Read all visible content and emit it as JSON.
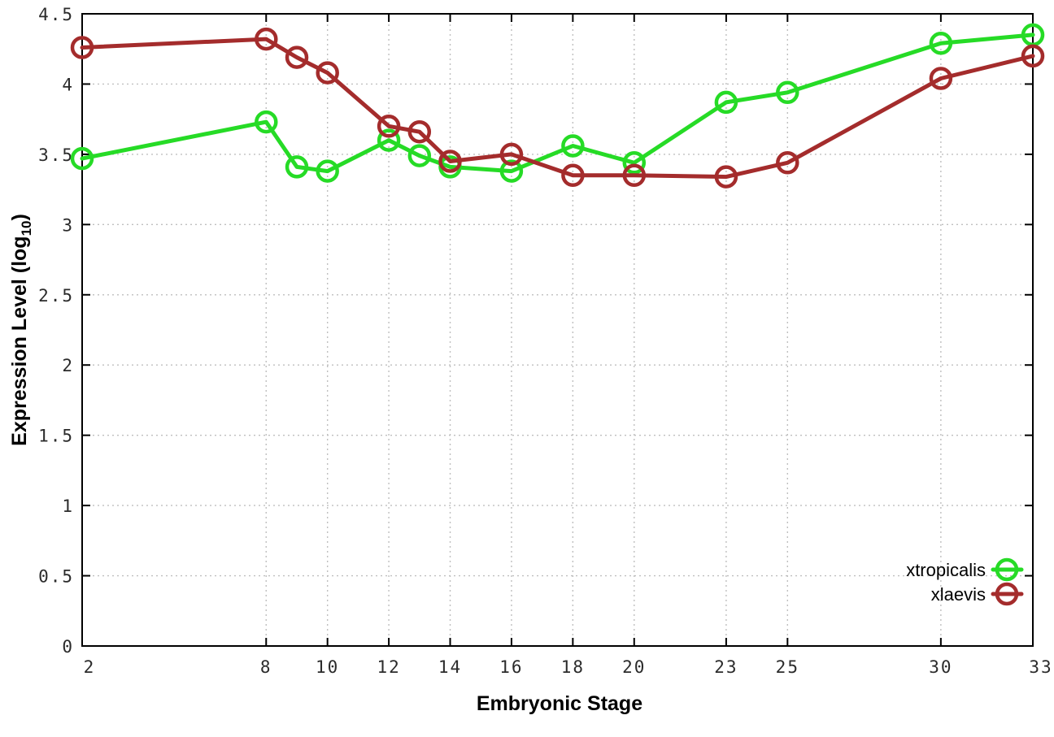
{
  "page": {
    "background": "#ffffff"
  },
  "chart_data": {
    "type": "line",
    "title": "",
    "xlabel": "Embryonic Stage",
    "ylabel": "Expression Level (log10)",
    "ylabel_parts": {
      "prefix": "Expression Level (log",
      "sub": "10",
      "suffix": ")"
    },
    "x": [
      2,
      8,
      9,
      10,
      12,
      13,
      14,
      16,
      18,
      20,
      23,
      25,
      30,
      33
    ],
    "series": [
      {
        "name": "xtropicalis",
        "color": "#26DB26",
        "values": [
          3.47,
          3.73,
          3.41,
          3.38,
          3.6,
          3.49,
          3.41,
          3.38,
          3.56,
          3.44,
          3.87,
          3.94,
          4.29,
          4.35
        ]
      },
      {
        "name": "xlaevis",
        "color": "#A42C2C",
        "values": [
          4.26,
          4.32,
          4.19,
          4.08,
          3.7,
          3.66,
          3.45,
          3.5,
          3.35,
          3.35,
          3.34,
          3.44,
          4.04,
          4.2
        ]
      }
    ],
    "xlim": [
      2,
      33
    ],
    "ylim": [
      0,
      4.5
    ],
    "xticks": [
      2,
      8,
      10,
      12,
      14,
      16,
      18,
      20,
      23,
      25,
      30,
      33
    ],
    "xtick_labels": [
      "2",
      "8",
      "10",
      "12",
      "14",
      "16",
      "18",
      "20",
      "23",
      "25",
      "30",
      "33"
    ],
    "yticks": [
      0,
      0.5,
      1,
      1.5,
      2,
      2.5,
      3,
      3.5,
      4,
      4.5
    ],
    "ytick_labels": [
      "0",
      "0.5",
      "1",
      "1.5",
      "2",
      "2.5",
      "3",
      "3.5",
      "4",
      "4.5"
    ],
    "grid": true,
    "legend_position": "inside-bottom-right",
    "marker": "open-circle",
    "colors": {
      "grid": "#bfbfbf",
      "border": "#000000",
      "tick_label": "#2b2b2b",
      "axis_title": "#000000"
    }
  }
}
